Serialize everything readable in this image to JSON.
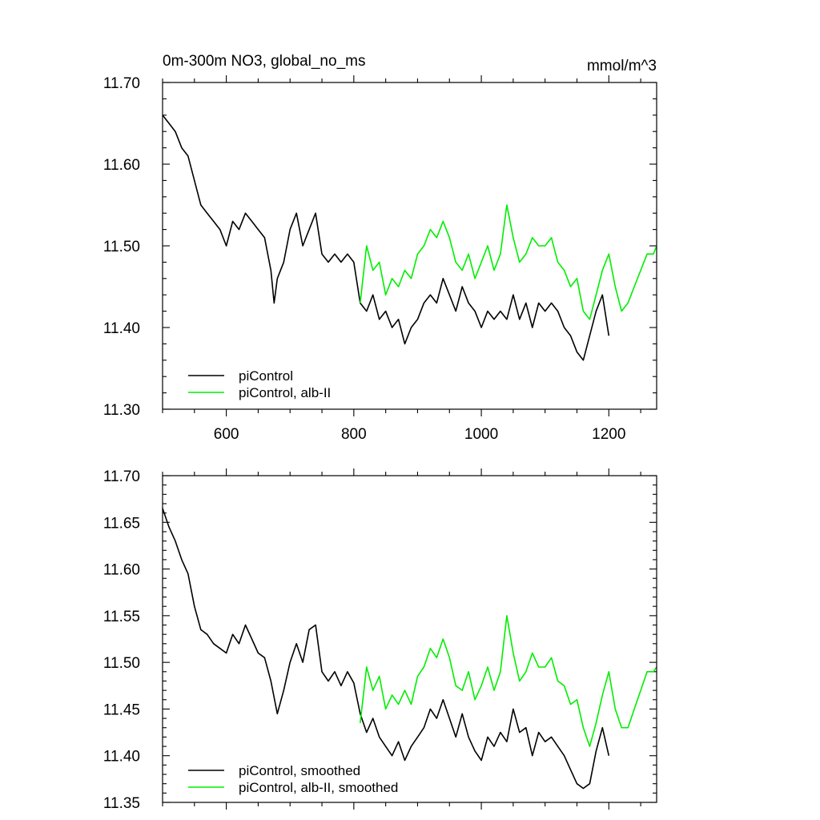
{
  "chart_data": [
    {
      "type": "line",
      "title_left": "0m-300m NO3, global_no_ms",
      "title_right": "mmol/m^3",
      "xlim": [
        500,
        1275
      ],
      "ylim": [
        11.3,
        11.7
      ],
      "x_ticks": [
        600,
        800,
        1000,
        1200
      ],
      "x_tick_labels": [
        "600",
        "800",
        "1000",
        "1200"
      ],
      "y_ticks": [
        11.3,
        11.4,
        11.5,
        11.6,
        11.7
      ],
      "y_tick_labels": [
        "11.30",
        "11.40",
        "11.50",
        "11.60",
        "11.70"
      ],
      "legend_position": "bottom-left",
      "series": [
        {
          "name": "piControl",
          "color": "#000000",
          "x": [
            500,
            510,
            520,
            530,
            540,
            550,
            560,
            570,
            580,
            590,
            600,
            610,
            620,
            630,
            640,
            650,
            660,
            670,
            675,
            680,
            690,
            700,
            710,
            720,
            730,
            740,
            750,
            760,
            770,
            780,
            790,
            800,
            810,
            820,
            830,
            840,
            850,
            860,
            870,
            880,
            890,
            900,
            910,
            920,
            930,
            940,
            950,
            960,
            970,
            980,
            990,
            1000,
            1010,
            1020,
            1030,
            1040,
            1050,
            1060,
            1070,
            1080,
            1090,
            1100,
            1110,
            1120,
            1130,
            1140,
            1150,
            1160,
            1170,
            1180,
            1190,
            1200
          ],
          "y": [
            11.66,
            11.65,
            11.64,
            11.62,
            11.61,
            11.58,
            11.55,
            11.54,
            11.53,
            11.52,
            11.5,
            11.53,
            11.52,
            11.54,
            11.53,
            11.52,
            11.51,
            11.47,
            11.43,
            11.46,
            11.48,
            11.52,
            11.54,
            11.5,
            11.52,
            11.54,
            11.49,
            11.48,
            11.49,
            11.48,
            11.49,
            11.48,
            11.43,
            11.42,
            11.44,
            11.41,
            11.42,
            11.4,
            11.41,
            11.38,
            11.4,
            11.41,
            11.43,
            11.44,
            11.43,
            11.46,
            11.44,
            11.42,
            11.45,
            11.43,
            11.42,
            11.4,
            11.42,
            11.41,
            11.42,
            11.41,
            11.44,
            11.41,
            11.43,
            11.4,
            11.43,
            11.42,
            11.43,
            11.42,
            11.4,
            11.39,
            11.37,
            11.36,
            11.39,
            11.42,
            11.44,
            11.39
          ]
        },
        {
          "name": "piControl, alb-II",
          "color": "#00ee00",
          "x": [
            810,
            820,
            830,
            840,
            850,
            860,
            870,
            880,
            890,
            900,
            910,
            920,
            930,
            940,
            950,
            960,
            970,
            980,
            990,
            1000,
            1010,
            1020,
            1030,
            1040,
            1050,
            1060,
            1070,
            1080,
            1090,
            1100,
            1110,
            1120,
            1130,
            1140,
            1150,
            1160,
            1170,
            1180,
            1190,
            1200,
            1210,
            1220,
            1230,
            1240,
            1250,
            1260,
            1270,
            1275
          ],
          "y": [
            11.43,
            11.5,
            11.47,
            11.48,
            11.44,
            11.46,
            11.45,
            11.47,
            11.46,
            11.49,
            11.5,
            11.52,
            11.51,
            11.53,
            11.51,
            11.48,
            11.47,
            11.49,
            11.46,
            11.48,
            11.5,
            11.47,
            11.49,
            11.55,
            11.51,
            11.48,
            11.49,
            11.51,
            11.5,
            11.5,
            11.51,
            11.48,
            11.47,
            11.45,
            11.46,
            11.42,
            11.41,
            11.44,
            11.47,
            11.49,
            11.45,
            11.42,
            11.43,
            11.45,
            11.47,
            11.49,
            11.49,
            11.5
          ]
        }
      ],
      "legend": [
        "piControl",
        "piControl, alb-II"
      ]
    },
    {
      "type": "line",
      "xlim": [
        500,
        1275
      ],
      "ylim": [
        11.35,
        11.7
      ],
      "x_ticks": [
        600,
        800,
        1000,
        1200
      ],
      "y_ticks": [
        11.35,
        11.4,
        11.45,
        11.5,
        11.55,
        11.6,
        11.65,
        11.7
      ],
      "y_tick_labels": [
        "11.35",
        "11.40",
        "11.45",
        "11.50",
        "11.55",
        "11.60",
        "11.65",
        "11.70"
      ],
      "legend_position": "bottom-left",
      "series": [
        {
          "name": "piControl, smoothed",
          "color": "#000000",
          "x": [
            500,
            510,
            520,
            530,
            540,
            550,
            560,
            570,
            580,
            590,
            600,
            610,
            620,
            630,
            640,
            650,
            660,
            670,
            680,
            690,
            700,
            710,
            720,
            730,
            740,
            750,
            760,
            770,
            780,
            790,
            800,
            810,
            820,
            830,
            840,
            850,
            860,
            870,
            880,
            890,
            900,
            910,
            920,
            930,
            940,
            950,
            960,
            970,
            980,
            990,
            1000,
            1010,
            1020,
            1030,
            1040,
            1050,
            1060,
            1070,
            1080,
            1090,
            1100,
            1110,
            1120,
            1130,
            1140,
            1150,
            1160,
            1170,
            1180,
            1190,
            1200
          ],
          "y": [
            11.665,
            11.645,
            11.63,
            11.61,
            11.595,
            11.56,
            11.535,
            11.53,
            11.52,
            11.515,
            11.51,
            11.53,
            11.52,
            11.54,
            11.525,
            11.51,
            11.505,
            11.48,
            11.445,
            11.47,
            11.5,
            11.52,
            11.5,
            11.535,
            11.54,
            11.49,
            11.48,
            11.49,
            11.475,
            11.49,
            11.478,
            11.445,
            11.425,
            11.44,
            11.42,
            11.41,
            11.4,
            11.415,
            11.395,
            11.41,
            11.42,
            11.43,
            11.45,
            11.44,
            11.46,
            11.44,
            11.42,
            11.445,
            11.42,
            11.405,
            11.395,
            11.42,
            11.41,
            11.425,
            11.415,
            11.45,
            11.425,
            11.43,
            11.4,
            11.425,
            11.415,
            11.42,
            11.41,
            11.4,
            11.385,
            11.37,
            11.365,
            11.37,
            11.405,
            11.43,
            11.4
          ]
        },
        {
          "name": "piControl, alb-II, smoothed",
          "color": "#00ee00",
          "x": [
            810,
            820,
            830,
            840,
            850,
            860,
            870,
            880,
            890,
            900,
            910,
            920,
            930,
            940,
            950,
            960,
            970,
            980,
            990,
            1000,
            1010,
            1020,
            1030,
            1040,
            1050,
            1060,
            1070,
            1080,
            1090,
            1100,
            1110,
            1120,
            1130,
            1140,
            1150,
            1160,
            1170,
            1180,
            1190,
            1200,
            1210,
            1220,
            1230,
            1240,
            1250,
            1260,
            1270,
            1275
          ],
          "y": [
            11.435,
            11.495,
            11.47,
            11.485,
            11.45,
            11.465,
            11.455,
            11.47,
            11.455,
            11.485,
            11.495,
            11.515,
            11.505,
            11.525,
            11.505,
            11.475,
            11.47,
            11.49,
            11.46,
            11.475,
            11.495,
            11.47,
            11.49,
            11.55,
            11.51,
            11.48,
            11.49,
            11.51,
            11.495,
            11.495,
            11.505,
            11.48,
            11.475,
            11.455,
            11.46,
            11.43,
            11.41,
            11.435,
            11.465,
            11.49,
            11.45,
            11.43,
            11.43,
            11.45,
            11.47,
            11.49,
            11.49,
            11.495
          ]
        }
      ],
      "legend": [
        "piControl, smoothed",
        "piControl, alb-II, smoothed"
      ]
    }
  ]
}
